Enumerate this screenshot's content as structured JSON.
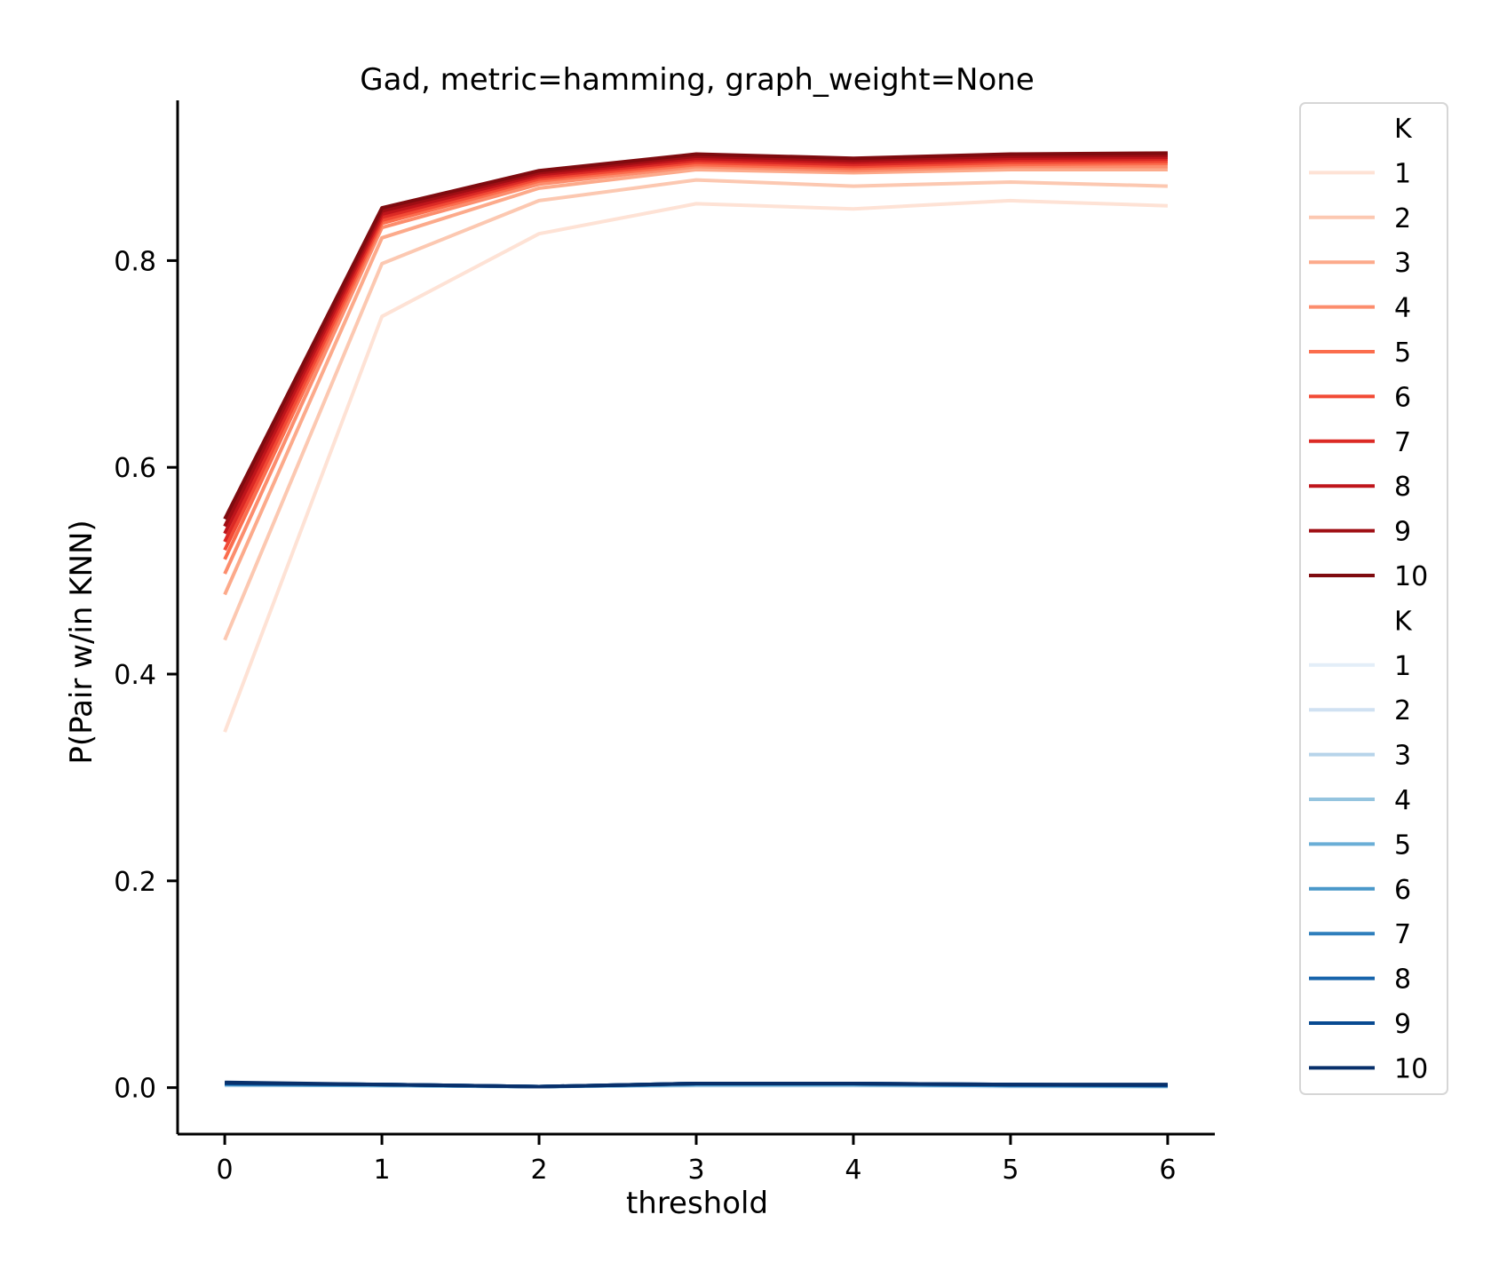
{
  "chart_data": {
    "type": "line",
    "title": "Gad, metric=hamming, graph_weight=None",
    "xlabel": "threshold",
    "ylabel": "P(Pair w/in KNN)",
    "x": [
      0,
      1,
      2,
      3,
      4,
      5,
      6
    ],
    "xlim": [
      -0.3,
      6.3
    ],
    "ylim": [
      -0.045,
      0.955
    ],
    "x_ticks": [
      "0",
      "1",
      "2",
      "3",
      "4",
      "5",
      "6"
    ],
    "y_ticks": [
      "0.0",
      "0.2",
      "0.4",
      "0.6",
      "0.8"
    ],
    "grid": false,
    "legend_placement": "outside right",
    "legend_groups": [
      {
        "title": "K",
        "series": [
          {
            "name": "1",
            "color": "#fee2d5",
            "values": [
              0.344,
              0.746,
              0.826,
              0.855,
              0.85,
              0.858,
              0.853
            ]
          },
          {
            "name": "2",
            "color": "#fcc8b1",
            "values": [
              0.433,
              0.797,
              0.858,
              0.878,
              0.872,
              0.876,
              0.872
            ]
          },
          {
            "name": "3",
            "color": "#fcaa8b",
            "values": [
              0.477,
              0.822,
              0.87,
              0.888,
              0.885,
              0.888,
              0.888
            ]
          },
          {
            "name": "4",
            "color": "#fc8d6d",
            "values": [
              0.497,
              0.832,
              0.874,
              0.891,
              0.887,
              0.891,
              0.891
            ]
          },
          {
            "name": "5",
            "color": "#fb6d4d",
            "values": [
              0.511,
              0.836,
              0.877,
              0.893,
              0.889,
              0.893,
              0.894
            ]
          },
          {
            "name": "6",
            "color": "#f24a35",
            "values": [
              0.52,
              0.839,
              0.879,
              0.895,
              0.891,
              0.895,
              0.896
            ]
          },
          {
            "name": "7",
            "color": "#dc2a25",
            "values": [
              0.528,
              0.842,
              0.881,
              0.897,
              0.893,
              0.897,
              0.898
            ]
          },
          {
            "name": "8",
            "color": "#bf151b",
            "values": [
              0.536,
              0.845,
              0.883,
              0.899,
              0.895,
              0.899,
              0.9
            ]
          },
          {
            "name": "9",
            "color": "#9f0e14",
            "values": [
              0.543,
              0.848,
              0.885,
              0.901,
              0.897,
              0.901,
              0.902
            ]
          },
          {
            "name": "10",
            "color": "#7f0b0f",
            "values": [
              0.55,
              0.851,
              0.887,
              0.903,
              0.899,
              0.903,
              0.904
            ]
          }
        ]
      },
      {
        "title": "K",
        "series": [
          {
            "name": "1",
            "color": "#e3eef8",
            "values": [
              0.002,
              0.002,
              0.001,
              0.002,
              0.002,
              0.001,
              0.001
            ]
          },
          {
            "name": "2",
            "color": "#d0e1f2",
            "values": [
              0.002,
              0.002,
              0.001,
              0.002,
              0.002,
              0.001,
              0.001
            ]
          },
          {
            "name": "3",
            "color": "#b7d4ea",
            "values": [
              0.003,
              0.002,
              0.001,
              0.002,
              0.002,
              0.002,
              0.001
            ]
          },
          {
            "name": "4",
            "color": "#94c4df",
            "values": [
              0.003,
              0.002,
              0.001,
              0.003,
              0.003,
              0.002,
              0.001
            ]
          },
          {
            "name": "5",
            "color": "#6aaed6",
            "values": [
              0.003,
              0.002,
              0.001,
              0.003,
              0.003,
              0.002,
              0.002
            ]
          },
          {
            "name": "6",
            "color": "#4a98c9",
            "values": [
              0.003,
              0.003,
              0.001,
              0.003,
              0.003,
              0.002,
              0.002
            ]
          },
          {
            "name": "7",
            "color": "#2e7ebc",
            "values": [
              0.004,
              0.003,
              0.001,
              0.004,
              0.004,
              0.002,
              0.002
            ]
          },
          {
            "name": "8",
            "color": "#1764ab",
            "values": [
              0.004,
              0.003,
              0.001,
              0.004,
              0.004,
              0.003,
              0.002
            ]
          },
          {
            "name": "9",
            "color": "#084a91",
            "values": [
              0.004,
              0.003,
              0.001,
              0.004,
              0.004,
              0.003,
              0.002
            ]
          },
          {
            "name": "10",
            "color": "#08306b",
            "values": [
              0.005,
              0.003,
              0.001,
              0.004,
              0.004,
              0.003,
              0.003
            ]
          }
        ]
      }
    ]
  }
}
